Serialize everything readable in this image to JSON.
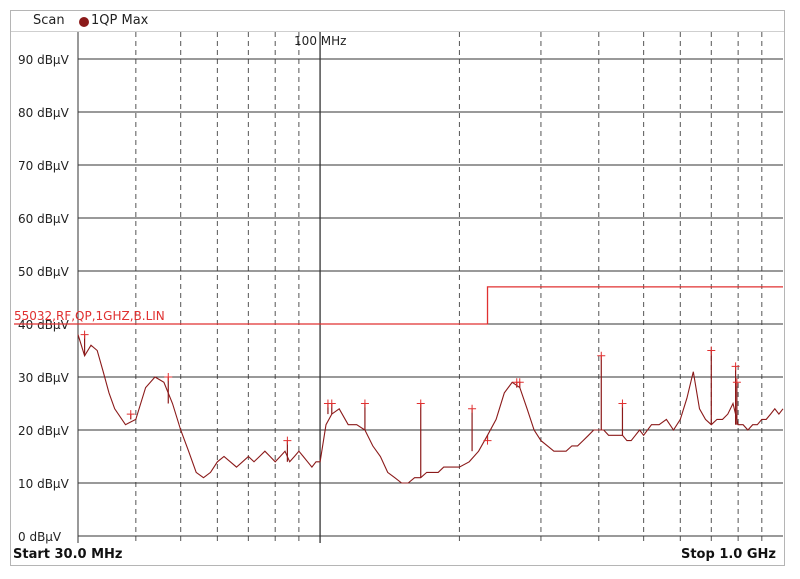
{
  "header": {
    "mode_label": "Scan",
    "trace_label": "1QP Max",
    "trace_color": "#8b1a1a"
  },
  "footer": {
    "start_label": "Start 30.0 MHz",
    "stop_label": "Stop 1.0 GHz"
  },
  "colors": {
    "trace": "#8b1a1a",
    "limit": "#e03030",
    "grid": "#333333"
  },
  "chart_data": {
    "type": "line",
    "x_scale": "log",
    "xlim_mhz": [
      30,
      1000
    ],
    "ylim": [
      0,
      95
    ],
    "y_unit": "dBµV",
    "ytick_values": [
      0,
      10,
      20,
      30,
      40,
      50,
      60,
      70,
      80,
      90
    ],
    "ytick_labels": [
      "0 dBµV",
      "10 dBµV",
      "20 dBµV",
      "30 dBµV",
      "40 dBµV",
      "50 dBµV",
      "60 dBµV",
      "70 dBµV",
      "80 dBµV",
      "90 dBµV"
    ],
    "x_marker_mhz": 100,
    "x_marker_label": "100 MHz",
    "grid": true,
    "series": [
      {
        "name": "1QP Max",
        "x_mhz": [
          30,
          31,
          32,
          33,
          34,
          35,
          36,
          38,
          40,
          42,
          44,
          46,
          48,
          50,
          52,
          54,
          56,
          58,
          60,
          62,
          64,
          66,
          68,
          70,
          72,
          74,
          76,
          78,
          80,
          82,
          84,
          86,
          88,
          90,
          92,
          94,
          96,
          98,
          100,
          103,
          106,
          110,
          115,
          120,
          125,
          130,
          135,
          140,
          145,
          150,
          155,
          160,
          165,
          170,
          175,
          180,
          185,
          190,
          200,
          210,
          220,
          230,
          240,
          250,
          260,
          270,
          280,
          290,
          300,
          310,
          320,
          330,
          340,
          350,
          360,
          370,
          380,
          390,
          400,
          410,
          420,
          430,
          440,
          450,
          460,
          470,
          480,
          490,
          500,
          520,
          540,
          560,
          580,
          600,
          620,
          640,
          660,
          680,
          700,
          720,
          740,
          760,
          780,
          800,
          820,
          840,
          860,
          880,
          900,
          920,
          940,
          960,
          980,
          1000
        ],
        "values": [
          38,
          34,
          36,
          35,
          31,
          27,
          24,
          21,
          22,
          28,
          30,
          29,
          25,
          20,
          16,
          12,
          11,
          12,
          14,
          15,
          14,
          13,
          14,
          15,
          14,
          15,
          16,
          15,
          14,
          15,
          16,
          14,
          15,
          16,
          15,
          14,
          13,
          14,
          14,
          21,
          23,
          24,
          21,
          21,
          20,
          17,
          15,
          12,
          11,
          10,
          10,
          11,
          11,
          12,
          12,
          12,
          13,
          13,
          13,
          14,
          16,
          19,
          22,
          27,
          29,
          28,
          24,
          20,
          18,
          17,
          16,
          16,
          16,
          17,
          17,
          18,
          19,
          20,
          20,
          20,
          19,
          19,
          19,
          19,
          18,
          18,
          19,
          20,
          19,
          21,
          21,
          22,
          20,
          22,
          26,
          31,
          24,
          22,
          21,
          22,
          22,
          23,
          25,
          21,
          21,
          20,
          21,
          21,
          22,
          22,
          23,
          24,
          23,
          24
        ]
      }
    ],
    "spikes": [
      {
        "x_mhz": 31,
        "value": 38
      },
      {
        "x_mhz": 39,
        "value": 23
      },
      {
        "x_mhz": 47,
        "value": 30
      },
      {
        "x_mhz": 85,
        "value": 18
      },
      {
        "x_mhz": 104,
        "value": 25
      },
      {
        "x_mhz": 106,
        "value": 25
      },
      {
        "x_mhz": 125,
        "value": 25
      },
      {
        "x_mhz": 165,
        "value": 25
      },
      {
        "x_mhz": 213,
        "value": 24
      },
      {
        "x_mhz": 230,
        "value": 18
      },
      {
        "x_mhz": 266,
        "value": 29
      },
      {
        "x_mhz": 270,
        "value": 29
      },
      {
        "x_mhz": 405,
        "value": 34
      },
      {
        "x_mhz": 450,
        "value": 25
      },
      {
        "x_mhz": 700,
        "value": 35
      },
      {
        "x_mhz": 790,
        "value": 32
      },
      {
        "x_mhz": 795,
        "value": 29
      }
    ],
    "limit_line": {
      "label": "55032,RF,QP,1GHZ,B.LIN",
      "segments": [
        {
          "from_mhz": 30,
          "to_mhz": 230,
          "value": 40
        },
        {
          "from_mhz": 230,
          "to_mhz": 1000,
          "value": 47
        }
      ]
    }
  }
}
